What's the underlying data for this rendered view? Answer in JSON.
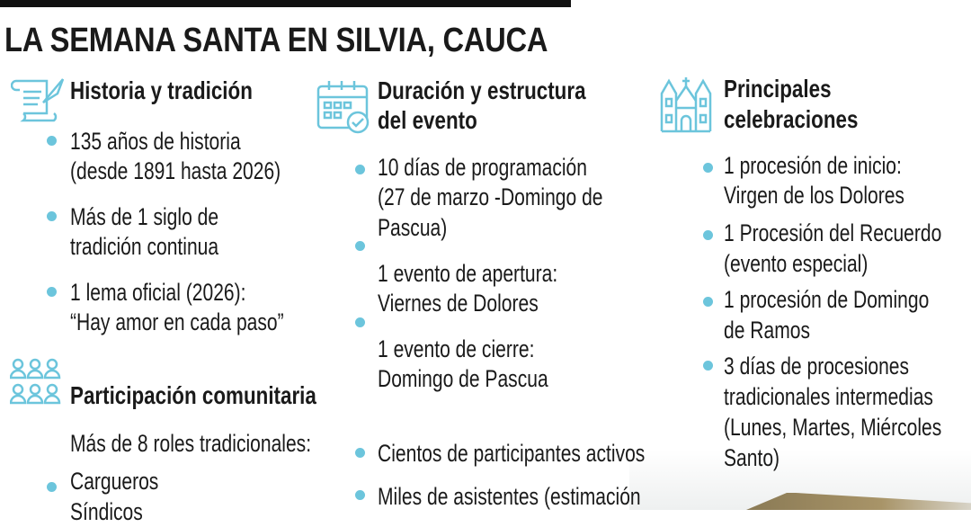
{
  "title": "LA SEMANA SANTA EN SILVIA, CAUCA",
  "accent_color": "#6cc5dc",
  "historia": {
    "icon": "scroll-quill-icon",
    "heading": "Historia y tradición",
    "items": [
      [
        "135 años de historia",
        "(desde 1891 hasta 2026)"
      ],
      [
        "Más de 1 siglo de",
        "tradición continua"
      ],
      [
        "1 lema oficial (2026):",
        "“Hay amor en cada paso”"
      ]
    ]
  },
  "participacion": {
    "icon": "people-group-icon",
    "heading": "Participación comunitaria",
    "intro": "Más de 8 roles tradicionales:",
    "items": [
      "Cargueros",
      "Síndicos"
    ]
  },
  "duracion": {
    "icon": "calendar-check-icon",
    "heading": [
      "Duración y estructura",
      "del evento"
    ],
    "items": [
      [
        "10 días de programación",
        "(27 de marzo -Domingo de",
        "Pascua)"
      ],
      [
        "1 evento de apertura:",
        "Viernes de Dolores"
      ],
      [
        "1 evento de cierre:",
        "Domingo de Pascua"
      ],
      [
        "Cientos de participantes activos"
      ],
      [
        "Miles de asistentes (estimación"
      ]
    ]
  },
  "celebraciones": {
    "icon": "church-icon",
    "heading": [
      "Principales",
      "celebraciones"
    ],
    "items": [
      [
        "1 procesión de inicio:",
        "Virgen de los Dolores"
      ],
      [
        "1 Procesión del Recuerdo",
        "(evento especial)"
      ],
      [
        "1 procesión de Domingo",
        "de Ramos"
      ],
      [
        "3 días de procesiones",
        "tradicionales intermedias",
        "(Lunes, Martes, Miércoles",
        "Santo)"
      ]
    ]
  }
}
